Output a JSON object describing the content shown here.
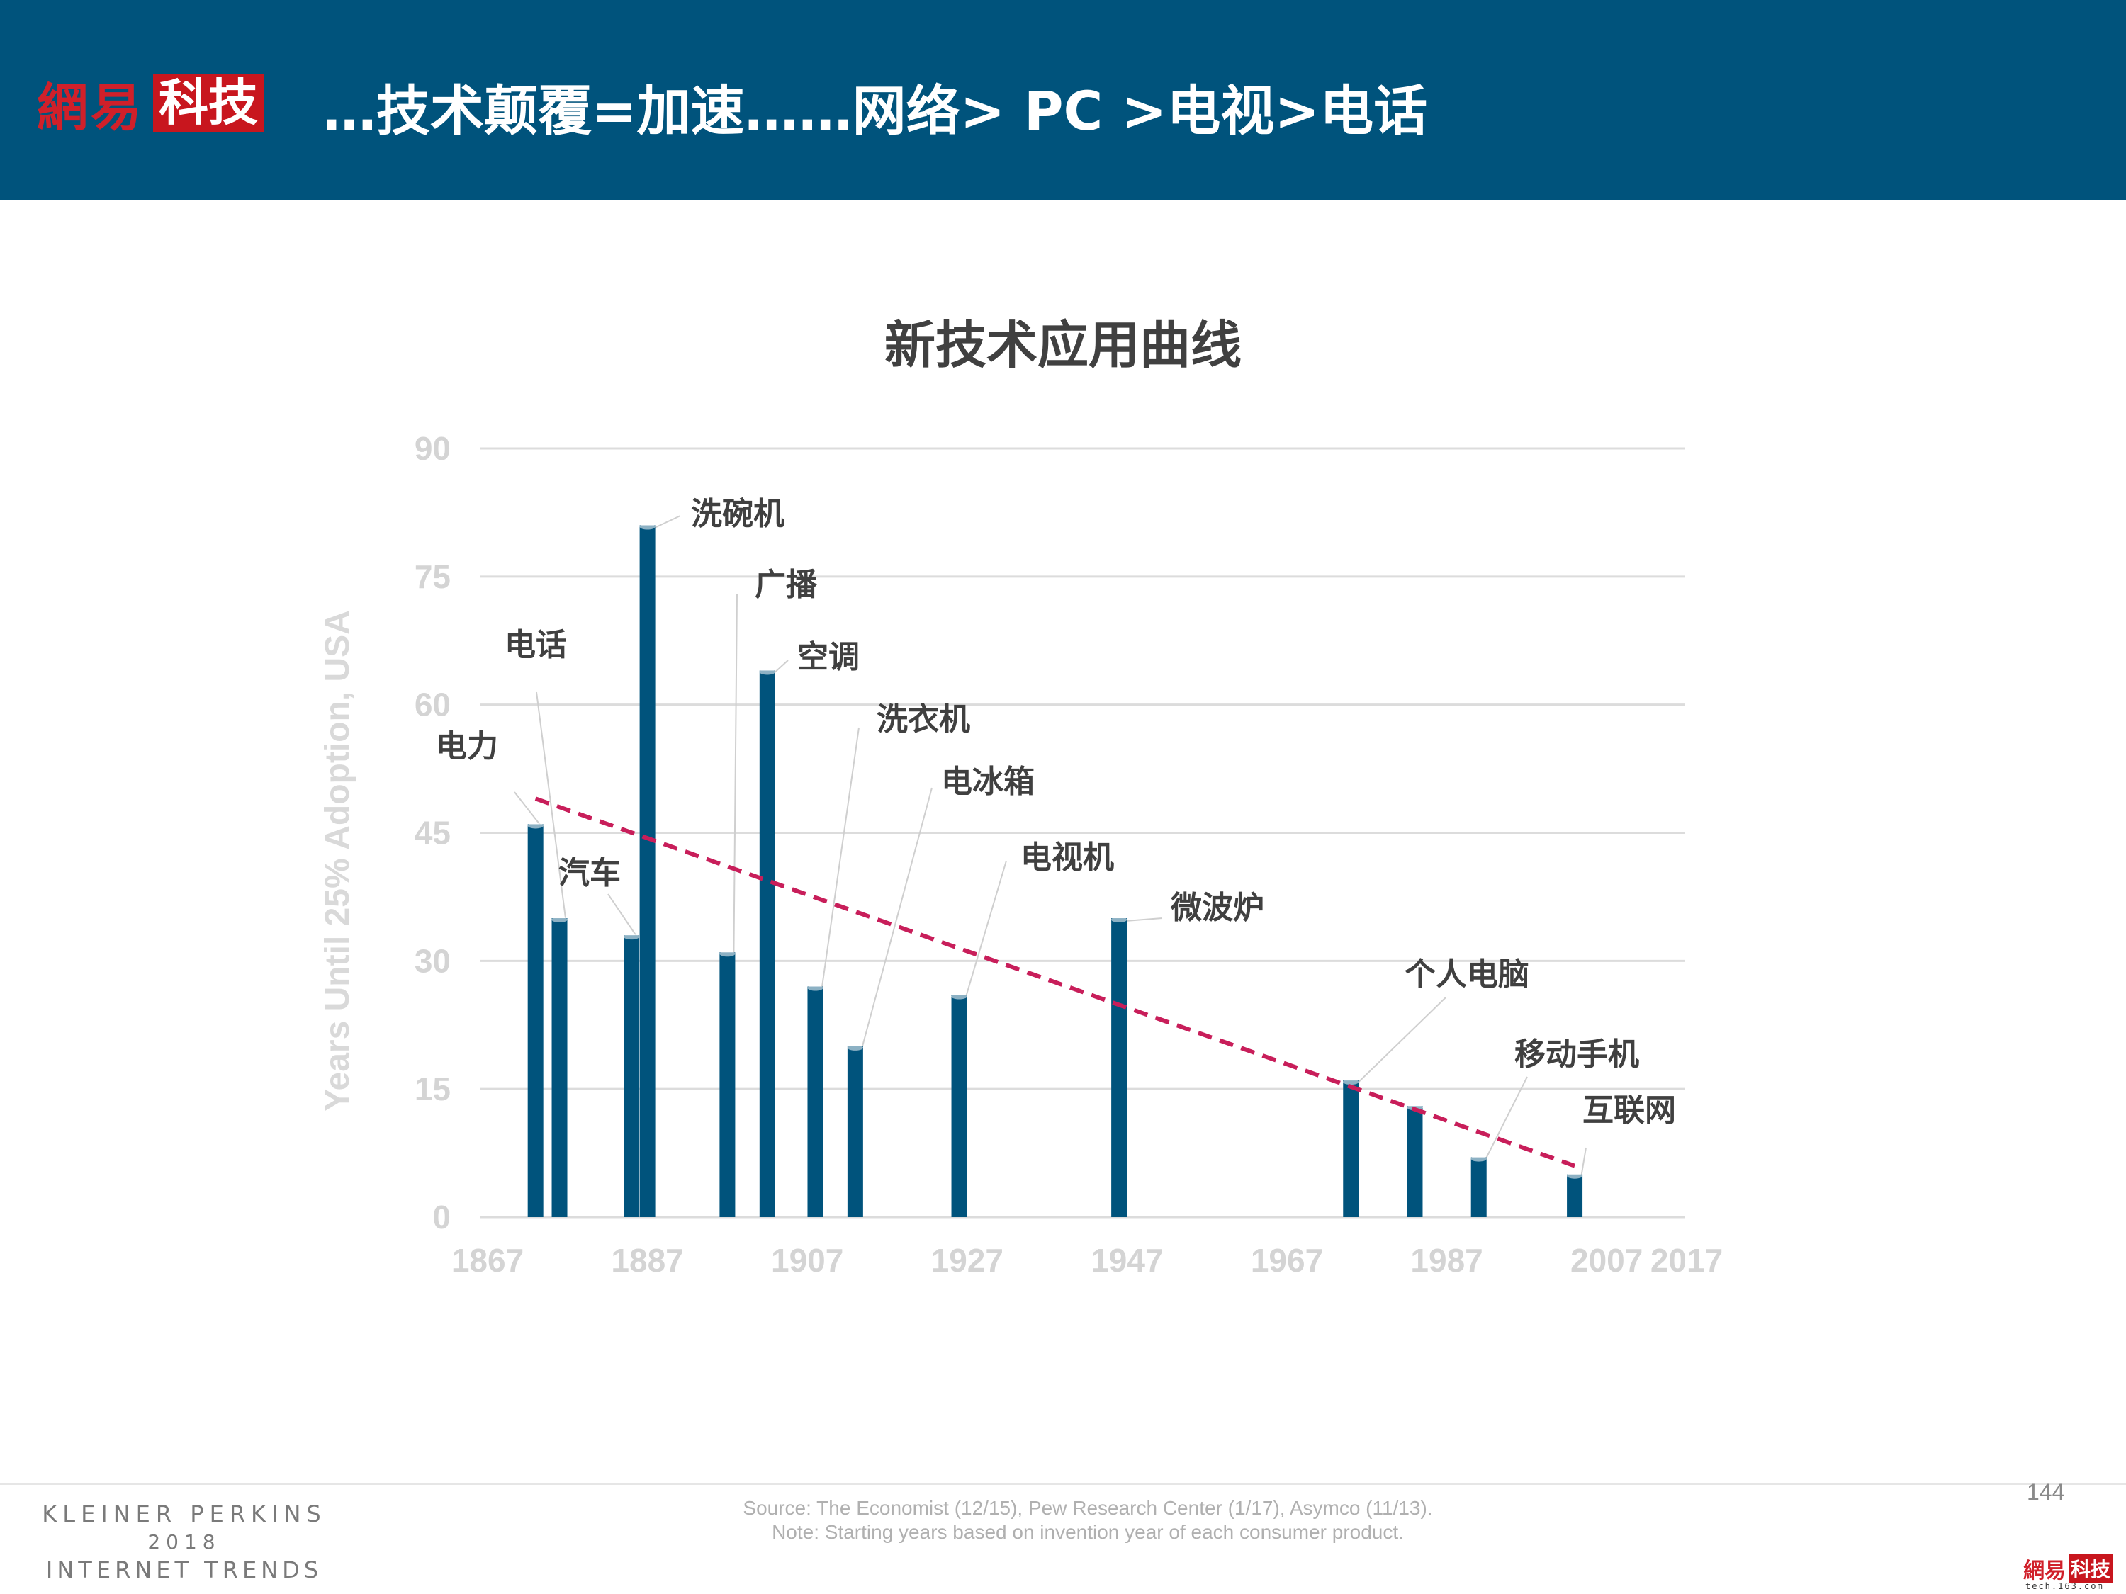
{
  "header": {
    "logo_text": "網易",
    "logo_badge": "科技",
    "title": "…技术颠覆=加速……网络> PC >电视>电话"
  },
  "colors": {
    "header_bg": "#00537C",
    "bar": "#00537C",
    "trend": "#C81E5A",
    "logo_red": "#C8161E"
  },
  "chart_data": {
    "type": "bar",
    "title": "新技术应用曲线",
    "ylabel": "Years Until 25% Adoption, USA",
    "xlabel": "",
    "ylim": [
      0,
      90
    ],
    "xlim": [
      1867,
      2017
    ],
    "yticks": [
      "0",
      "15",
      "30",
      "45",
      "60",
      "75",
      "90"
    ],
    "xticks": [
      "1867",
      "1887",
      "1907",
      "1927",
      "1947",
      "1967",
      "1987",
      "2007",
      "2017"
    ],
    "grid": true,
    "bars": [
      {
        "label": "电力",
        "x": 1873,
        "y": 46
      },
      {
        "label": "电话",
        "x": 1876,
        "y": 35
      },
      {
        "label": "汽车",
        "x": 1885,
        "y": 33
      },
      {
        "label": "洗碗机",
        "x": 1887,
        "y": 81
      },
      {
        "label": "广播",
        "x": 1897,
        "y": 31
      },
      {
        "label": "空调",
        "x": 1902,
        "y": 64
      },
      {
        "label": "洗衣机",
        "x": 1908,
        "y": 27
      },
      {
        "label": "电冰箱",
        "x": 1913,
        "y": 20
      },
      {
        "label": "电视机",
        "x": 1926,
        "y": 26
      },
      {
        "label": "微波炉",
        "x": 1946,
        "y": 35
      },
      {
        "label": "个人电脑",
        "x": 1975,
        "y": 16
      },
      {
        "label": "",
        "x": 1983,
        "y": 13
      },
      {
        "label": "移动手机",
        "x": 1991,
        "y": 7
      },
      {
        "label": "互联网",
        "x": 2003,
        "y": 5
      }
    ],
    "trendline": {
      "type": "linear",
      "from": {
        "x": 1873,
        "y": 49
      },
      "to": {
        "x": 2003,
        "y": 6
      }
    }
  },
  "footer": {
    "brand_line1": "KLEINER PERKINS",
    "brand_line2": "2018",
    "brand_line3": "INTERNET TRENDS",
    "source_line1": "Source: The Economist (12/15), Pew Research Center (1/17), Asymco (11/13).",
    "source_line2": "Note: Starting years based on invention year of each consumer product.",
    "page_number": "144",
    "mini_logo_text": "網易",
    "mini_logo_badge": "科技",
    "mini_logo_url": "tech.163.com"
  }
}
